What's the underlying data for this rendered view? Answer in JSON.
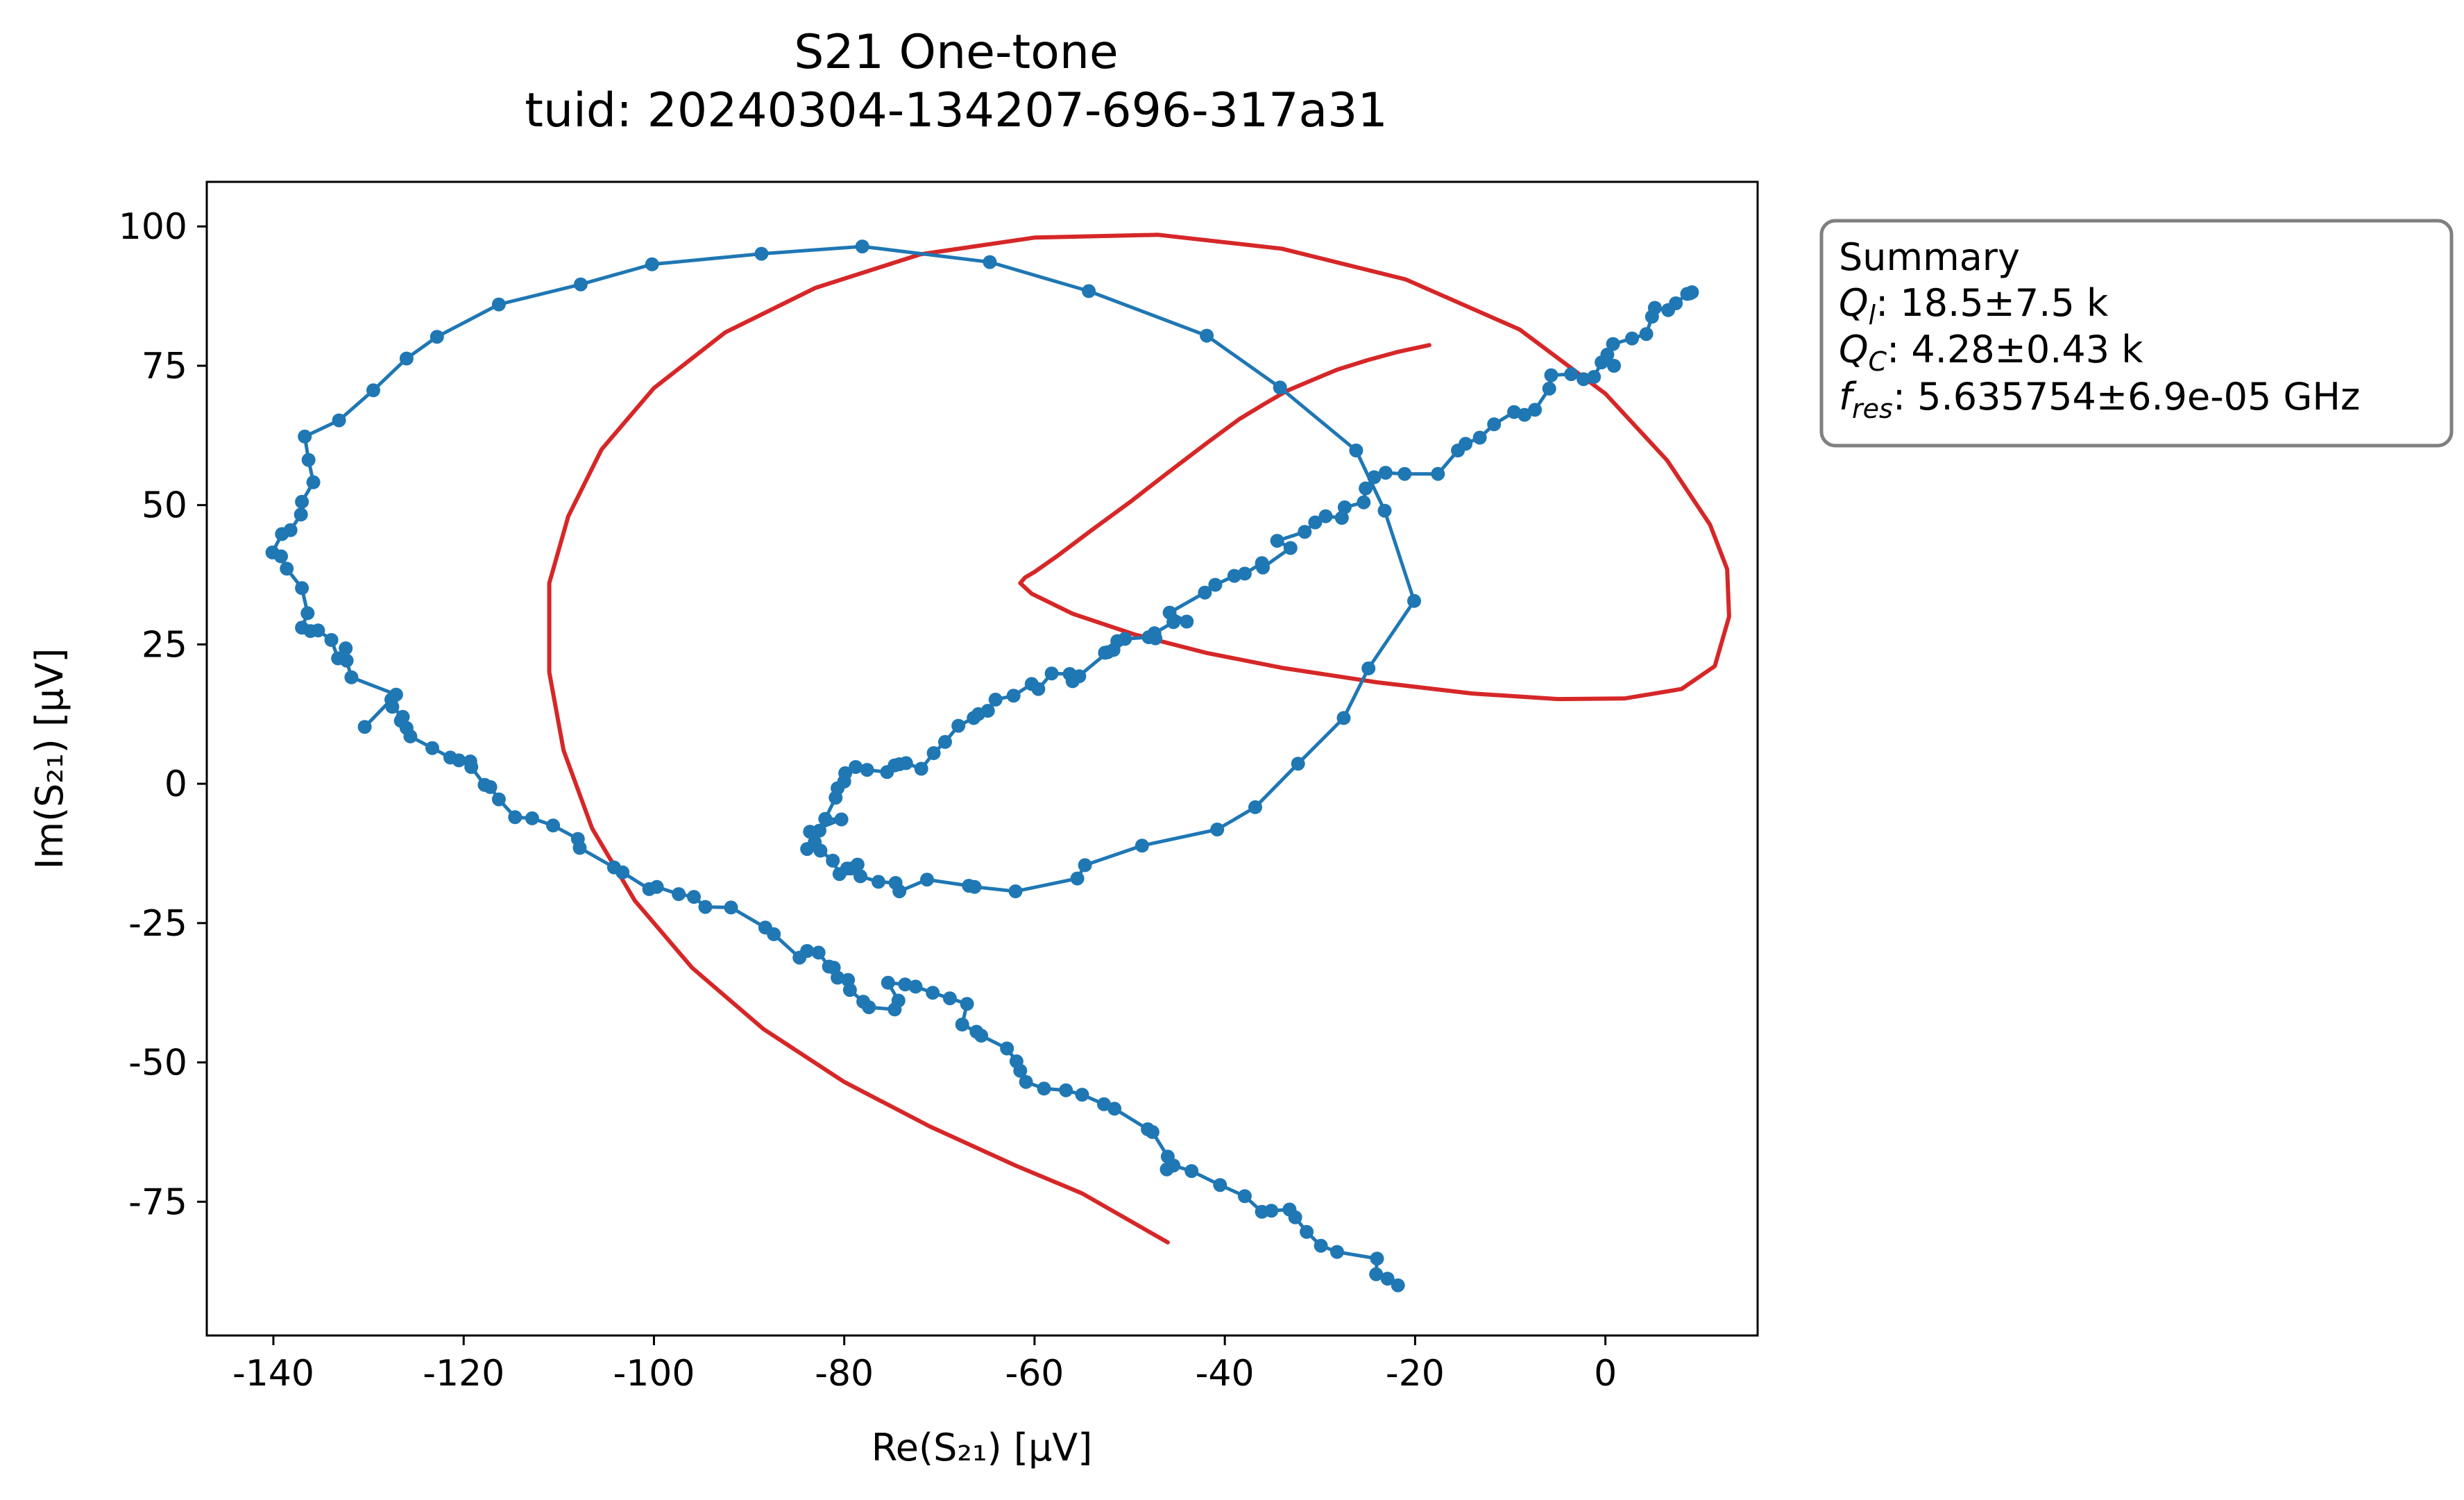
{
  "chart_data": {
    "type": "line",
    "title": "S21 One-tone",
    "subtitle": "tuid: 20240304-134207-696-317a31",
    "xlabel": "Re(S₂₁) [µV]",
    "ylabel": "Im(S₂₁) [µV]",
    "xlim": [
      -147,
      16
    ],
    "ylim": [
      -99,
      108
    ],
    "x_ticks": [
      -140,
      -120,
      -100,
      -80,
      -60,
      -40,
      -20,
      0
    ],
    "x_tick_labels": [
      "-140",
      "-120",
      "-100",
      "-80",
      "-60",
      "-40",
      "-20",
      "0"
    ],
    "y_ticks": [
      100,
      75,
      50,
      25,
      0,
      -25,
      -50,
      -75
    ],
    "y_tick_labels": [
      "100",
      "75",
      "50",
      "25",
      "0",
      "-25",
      "-50",
      "-75"
    ],
    "grid": false,
    "colors": {
      "data": "#1f77b4",
      "fit": "#d62728",
      "axis": "#000000",
      "box_border": "#808080"
    },
    "series": [
      {
        "kind": "data",
        "marker": "circle",
        "points": [
          [
            -21.8,
            -90.0
          ],
          [
            -22.9,
            -88.8
          ],
          [
            -24.1,
            -88.0
          ],
          [
            -24.0,
            -85.2
          ],
          [
            -28.2,
            -84.0
          ],
          [
            -29.9,
            -82.9
          ],
          [
            -31.4,
            -80.4
          ],
          [
            -32.6,
            -77.8
          ],
          [
            -33.2,
            -76.4
          ],
          [
            -35.1,
            -76.6
          ],
          [
            -36.1,
            -76.8
          ],
          [
            -37.9,
            -74.0
          ],
          [
            -40.5,
            -72.0
          ],
          [
            -43.5,
            -69.5
          ],
          [
            -45.4,
            -68.5
          ],
          [
            -46.1,
            -69.2
          ],
          [
            -46.0,
            -66.9
          ],
          [
            -47.6,
            -62.5
          ],
          [
            -48.1,
            -62.0
          ],
          [
            -51.6,
            -58.3
          ],
          [
            -52.7,
            -57.5
          ],
          [
            -55.0,
            -55.8
          ],
          [
            -56.7,
            -55.0
          ],
          [
            -59.0,
            -54.7
          ],
          [
            -60.9,
            -53.5
          ],
          [
            -61.5,
            -51.5
          ],
          [
            -61.9,
            -49.8
          ],
          [
            -62.9,
            -47.5
          ],
          [
            -65.6,
            -45.2
          ],
          [
            -66.1,
            -44.5
          ],
          [
            -67.6,
            -43.2
          ],
          [
            -67.1,
            -39.5
          ],
          [
            -68.9,
            -38.5
          ],
          [
            -70.7,
            -37.5
          ],
          [
            -72.5,
            -36.4
          ],
          [
            -73.6,
            -36.0
          ],
          [
            -75.4,
            -35.7
          ],
          [
            -74.3,
            -38.9
          ],
          [
            -74.7,
            -40.5
          ],
          [
            -77.4,
            -40.1
          ],
          [
            -78.0,
            -39.1
          ],
          [
            -79.4,
            -37.0
          ],
          [
            -79.6,
            -35.2
          ],
          [
            -80.7,
            -34.8
          ],
          [
            -81.1,
            -33.0
          ],
          [
            -81.6,
            -32.8
          ],
          [
            -82.7,
            -30.3
          ],
          [
            -83.9,
            -30.0
          ],
          [
            -84.7,
            -31.2
          ],
          [
            -87.4,
            -27.0
          ],
          [
            -88.3,
            -25.8
          ],
          [
            -91.9,
            -22.2
          ],
          [
            -94.6,
            -22.1
          ],
          [
            -95.8,
            -20.3
          ],
          [
            -97.4,
            -19.8
          ],
          [
            -99.7,
            -18.5
          ],
          [
            -100.5,
            -18.9
          ],
          [
            -103.3,
            -15.9
          ],
          [
            -104.2,
            -15.0
          ],
          [
            -107.8,
            -11.5
          ],
          [
            -108.0,
            -9.9
          ],
          [
            -110.6,
            -7.5
          ],
          [
            -112.8,
            -6.2
          ],
          [
            -114.6,
            -6.0
          ],
          [
            -116.3,
            -2.8
          ],
          [
            -117.2,
            -0.6
          ],
          [
            -117.8,
            -0.2
          ],
          [
            -119.2,
            3.0
          ],
          [
            -119.3,
            4.0
          ],
          [
            -120.5,
            4.2
          ],
          [
            -121.4,
            4.7
          ],
          [
            -123.3,
            6.4
          ],
          [
            -125.6,
            8.5
          ],
          [
            -126.0,
            10.0
          ],
          [
            -126.6,
            11.3
          ],
          [
            -126.4,
            12.0
          ],
          [
            -127.5,
            13.8
          ],
          [
            -127.6,
            15.1
          ],
          [
            -130.4,
            10.2
          ],
          [
            -127.1,
            16.0
          ],
          [
            -131.8,
            19.1
          ],
          [
            -132.3,
            22.1
          ],
          [
            -132.4,
            24.3
          ],
          [
            -133.2,
            22.5
          ],
          [
            -133.9,
            25.8
          ],
          [
            -135.3,
            27.5
          ],
          [
            -136.1,
            27.4
          ],
          [
            -137.0,
            28.0
          ],
          [
            -136.4,
            30.6
          ],
          [
            -137.0,
            35.1
          ],
          [
            -138.6,
            38.6
          ],
          [
            -139.2,
            40.8
          ],
          [
            -140.1,
            41.5
          ],
          [
            -139.1,
            44.8
          ],
          [
            -138.2,
            45.5
          ],
          [
            -137.1,
            48.3
          ],
          [
            -137.0,
            50.6
          ],
          [
            -135.8,
            54.1
          ],
          [
            -136.3,
            58.1
          ],
          [
            -136.7,
            62.3
          ],
          [
            -133.1,
            65.2
          ],
          [
            -129.5,
            70.6
          ],
          [
            -126.0,
            76.3
          ],
          [
            -122.8,
            80.2
          ],
          [
            -116.3,
            86.0
          ],
          [
            -107.7,
            89.6
          ],
          [
            -100.2,
            93.2
          ],
          [
            -88.7,
            95.1
          ],
          [
            -78.1,
            96.4
          ],
          [
            -64.7,
            93.6
          ],
          [
            -54.3,
            88.4
          ],
          [
            -41.9,
            80.4
          ],
          [
            -34.2,
            71.1
          ],
          [
            -26.2,
            59.8
          ],
          [
            -23.2,
            49.0
          ],
          [
            -20.1,
            32.8
          ],
          [
            -24.9,
            20.7
          ],
          [
            -27.5,
            11.8
          ],
          [
            -32.3,
            3.6
          ],
          [
            -36.8,
            -4.2
          ],
          [
            -40.8,
            -8.2
          ],
          [
            -48.7,
            -11.1
          ],
          [
            -54.7,
            -14.6
          ],
          [
            -55.5,
            -17.0
          ],
          [
            -62.0,
            -19.3
          ],
          [
            -66.3,
            -18.5
          ],
          [
            -66.9,
            -18.3
          ],
          [
            -71.3,
            -17.2
          ],
          [
            -74.2,
            -19.3
          ],
          [
            -74.6,
            -17.8
          ],
          [
            -76.4,
            -17.6
          ],
          [
            -78.3,
            -16.6
          ],
          [
            -79.3,
            -15.2
          ],
          [
            -78.6,
            -14.5
          ],
          [
            -79.7,
            -15.2
          ],
          [
            -80.5,
            -16.2
          ],
          [
            -81.2,
            -13.8
          ],
          [
            -82.5,
            -12.0
          ],
          [
            -83.9,
            -11.7
          ],
          [
            -83.1,
            -10.5
          ],
          [
            -82.6,
            -8.4
          ],
          [
            -83.6,
            -8.6
          ],
          [
            -80.3,
            -6.4
          ],
          [
            -82.0,
            -6.3
          ],
          [
            -80.9,
            -2.5
          ],
          [
            -80.7,
            -0.8
          ],
          [
            -80.0,
            0.4
          ],
          [
            -79.9,
            1.9
          ],
          [
            -78.8,
            3.0
          ],
          [
            -77.6,
            2.5
          ],
          [
            -75.5,
            2.1
          ],
          [
            -74.7,
            3.3
          ],
          [
            -74.2,
            3.5
          ],
          [
            -73.5,
            3.7
          ],
          [
            -71.9,
            2.7
          ],
          [
            -70.6,
            5.5
          ],
          [
            -69.4,
            7.5
          ],
          [
            -68.0,
            10.4
          ],
          [
            -66.4,
            11.8
          ],
          [
            -65.9,
            12.5
          ],
          [
            -64.9,
            13.1
          ],
          [
            -64.1,
            15.1
          ],
          [
            -62.2,
            15.8
          ],
          [
            -60.3,
            17.9
          ],
          [
            -59.6,
            17.0
          ],
          [
            -58.2,
            19.8
          ],
          [
            -56.3,
            19.7
          ],
          [
            -55.3,
            19.3
          ],
          [
            -56.0,
            18.4
          ],
          [
            -52.3,
            23.6
          ],
          [
            -52.6,
            23.5
          ],
          [
            -51.7,
            24.0
          ],
          [
            -51.3,
            25.6
          ],
          [
            -50.5,
            26.0
          ],
          [
            -48.0,
            26.3
          ],
          [
            -47.3,
            26.1
          ],
          [
            -47.4,
            27.0
          ],
          [
            -45.4,
            29.0
          ],
          [
            -44.0,
            29.1
          ],
          [
            -45.8,
            30.7
          ],
          [
            -42.1,
            34.3
          ],
          [
            -41.0,
            35.7
          ],
          [
            -39.0,
            37.3
          ],
          [
            -37.9,
            37.7
          ],
          [
            -36.1,
            39.6
          ],
          [
            -36.0,
            38.8
          ],
          [
            -33.1,
            42.3
          ],
          [
            -34.5,
            43.6
          ],
          [
            -31.6,
            45.2
          ],
          [
            -30.5,
            46.9
          ],
          [
            -29.4,
            48.0
          ],
          [
            -27.7,
            47.7
          ],
          [
            -27.4,
            49.6
          ],
          [
            -25.4,
            50.5
          ],
          [
            -25.2,
            53.0
          ],
          [
            -24.3,
            55.0
          ],
          [
            -23.1,
            55.8
          ],
          [
            -21.1,
            55.6
          ],
          [
            -17.6,
            55.6
          ],
          [
            -15.5,
            59.8
          ],
          [
            -14.7,
            61.0
          ],
          [
            -13.2,
            62.1
          ],
          [
            -11.7,
            64.5
          ],
          [
            -9.6,
            66.7
          ],
          [
            -8.5,
            66.2
          ],
          [
            -7.4,
            67.1
          ],
          [
            -5.9,
            70.9
          ],
          [
            -5.7,
            73.3
          ],
          [
            -3.6,
            73.5
          ],
          [
            -2.3,
            72.6
          ],
          [
            -1.2,
            73.0
          ],
          [
            -0.4,
            75.6
          ],
          [
            0.9,
            75.0
          ],
          [
            0.2,
            77.0
          ],
          [
            0.8,
            78.9
          ],
          [
            2.8,
            79.9
          ],
          [
            4.3,
            80.7
          ],
          [
            4.9,
            83.8
          ],
          [
            5.2,
            85.4
          ],
          [
            6.6,
            85.0
          ],
          [
            7.4,
            86.2
          ],
          [
            8.6,
            87.9
          ],
          [
            8.9,
            88.0
          ],
          [
            9.1,
            88.2
          ]
        ]
      },
      {
        "kind": "fit",
        "marker": "none",
        "points": [
          [
            -18.5,
            78.7
          ],
          [
            -21.8,
            77.5
          ],
          [
            -25.0,
            76.0
          ],
          [
            -28.2,
            74.3
          ],
          [
            -31.0,
            72.3
          ],
          [
            -33.5,
            70.5
          ],
          [
            -36.0,
            68.0
          ],
          [
            -38.5,
            65.4
          ],
          [
            -42.0,
            61.0
          ],
          [
            -46.0,
            55.8
          ],
          [
            -50.0,
            50.5
          ],
          [
            -54.0,
            45.5
          ],
          [
            -57.5,
            41.0
          ],
          [
            -60.0,
            38.0
          ],
          [
            -61.0,
            37.0
          ],
          [
            -61.5,
            36.0
          ],
          [
            -60.3,
            34.1
          ],
          [
            -56.0,
            30.5
          ],
          [
            -49.5,
            26.8
          ],
          [
            -42.0,
            23.5
          ],
          [
            -34.0,
            20.8
          ],
          [
            -24.0,
            18.2
          ],
          [
            -14.0,
            16.2
          ],
          [
            -5.0,
            15.2
          ],
          [
            2.0,
            15.3
          ],
          [
            8.0,
            17.0
          ],
          [
            11.5,
            21.1
          ],
          [
            13.0,
            30.0
          ],
          [
            12.8,
            38.5
          ],
          [
            11.0,
            46.5
          ],
          [
            6.5,
            58.0
          ],
          [
            0.0,
            70.0
          ],
          [
            -9.0,
            81.5
          ],
          [
            -21.0,
            90.5
          ],
          [
            -34.0,
            96.0
          ],
          [
            -47.0,
            98.5
          ],
          [
            -60.0,
            98.0
          ],
          [
            -72.0,
            95.0
          ],
          [
            -83.0,
            89.0
          ],
          [
            -92.5,
            81.0
          ],
          [
            -100.0,
            71.0
          ],
          [
            -105.5,
            60.0
          ],
          [
            -109.0,
            48.0
          ],
          [
            -111.0,
            36.0
          ],
          [
            -111.0,
            20.0
          ],
          [
            -109.5,
            6.0
          ],
          [
            -106.5,
            -8.0
          ],
          [
            -102.0,
            -21.0
          ],
          [
            -96.0,
            -33.0
          ],
          [
            -88.5,
            -44.0
          ],
          [
            -80.0,
            -53.5
          ],
          [
            -71.0,
            -61.5
          ],
          [
            -62.0,
            -68.5
          ],
          [
            -55.0,
            -73.5
          ],
          [
            -46.0,
            -82.3
          ]
        ]
      }
    ],
    "summary": {
      "title": "Summary",
      "ql_symbol": "Q",
      "ql_subscript": "l",
      "ql_value": ": 18.5±7.5 k",
      "qc_symbol": "Q",
      "qc_subscript": "C",
      "qc_value": ": 4.28±0.43 k",
      "fres_symbol": "f",
      "fres_subscript": "res",
      "fres_value": ": 5.635754±6.9e-05 GHz",
      "placement": "outside-right"
    }
  }
}
